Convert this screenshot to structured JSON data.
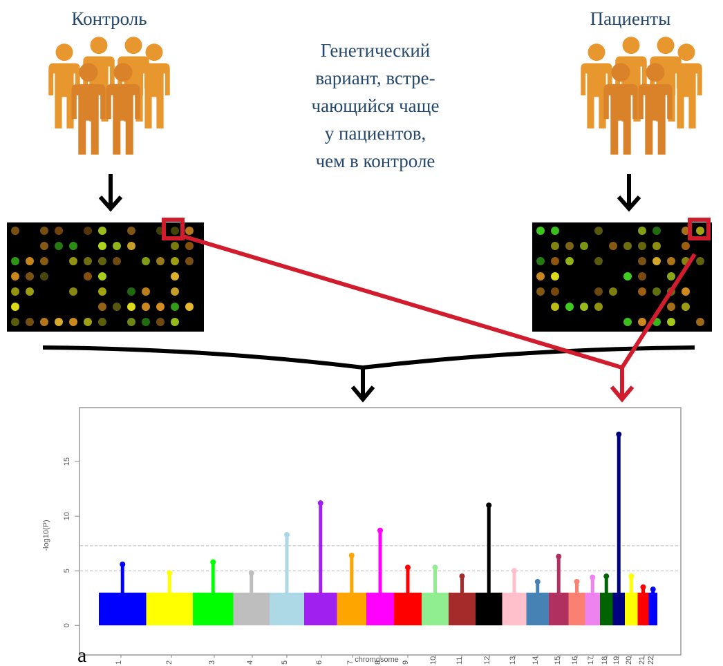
{
  "left_group": {
    "label": "Контроль"
  },
  "right_group": {
    "label": "Пациенты"
  },
  "annotation": {
    "lines": [
      "Генетический",
      "вариант, встре-",
      "чающийся чаще",
      "у пациентов,",
      "чем в контроле"
    ]
  },
  "panel_label": "a",
  "plot": {
    "y_label": "-log10(P)",
    "x_label": "chromosome",
    "ylim": [
      -1,
      19.5
    ],
    "yticks": [
      0,
      5,
      10,
      15
    ],
    "thresholds": [
      7.3,
      5
    ],
    "chromosomes": [
      "1",
      "2",
      "3",
      "4",
      "5",
      "6",
      "7",
      "8",
      "9",
      "10",
      "11",
      "12",
      "13",
      "14",
      "15",
      "16",
      "17",
      "18",
      "19",
      "20",
      "21",
      "22"
    ],
    "colors": [
      "#0000ff",
      "#ffff00",
      "#00ff00",
      "#bebebe",
      "#add8e6",
      "#a020f0",
      "#ffa500",
      "#ff00ff",
      "#ff0000",
      "#90ee90",
      "#a52a2a",
      "#000000",
      "#ffc0cb",
      "#4682b4",
      "#b03060",
      "#fa8072",
      "#ee82ee",
      "#006400",
      "#000080",
      "#ffff00",
      "#ff0000",
      "#0000ff"
    ],
    "bulk": [
      3,
      3,
      3,
      3,
      3,
      3,
      3,
      3,
      3,
      3,
      3,
      3,
      3,
      3,
      3,
      3,
      3,
      3,
      3,
      3,
      3,
      3
    ],
    "peak": [
      5.6,
      4.8,
      5.8,
      4.8,
      8.3,
      11.2,
      6.4,
      8.7,
      5.3,
      5.3,
      4.5,
      11,
      5,
      4,
      6.3,
      4,
      4.4,
      4.5,
      17.5,
      4.5,
      3.5,
      3.3
    ]
  }
}
